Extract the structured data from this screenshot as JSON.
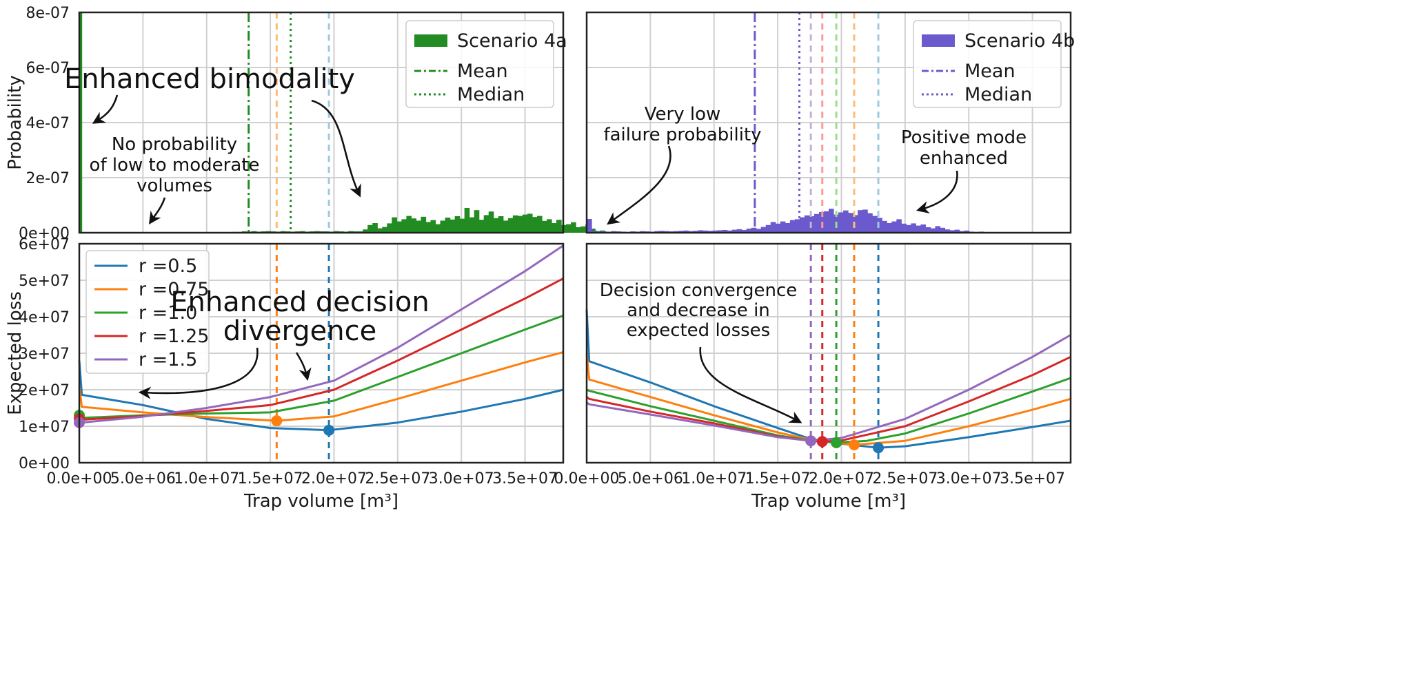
{
  "chart_data": [
    {
      "panel": "top-left",
      "type": "bar",
      "ylabel": "Probability",
      "xlim": [
        0,
        38000000
      ],
      "ylim": [
        0,
        8e-07
      ],
      "yticks": [
        "0e+00",
        "2e-07",
        "4e-07",
        "6e-07",
        "8e-07"
      ],
      "grid": true,
      "legend": {
        "position": "top-right",
        "entries": [
          "Scenario 4a",
          "Mean",
          "Median"
        ]
      },
      "color": "#228b22",
      "bin_start": 0,
      "bin_width": 380000,
      "hist_values": [
        8e-07,
        0,
        0,
        0,
        0,
        0,
        0,
        0,
        0,
        0,
        0,
        0,
        0,
        0,
        0,
        0,
        0,
        0,
        0,
        0,
        0,
        0,
        0,
        0,
        0,
        0,
        0,
        0,
        0,
        0,
        0,
        0,
        0,
        0,
        0,
        0,
        0,
        0,
        0,
        0,
        0,
        0,
        0,
        0,
        0,
        0,
        0,
        0,
        0,
        0,
        0,
        0,
        0,
        0,
        0,
        0,
        0,
        0,
        0,
        0,
        0,
        0,
        0,
        0,
        0,
        0,
        0,
        0,
        0,
        0,
        0,
        0,
        0,
        0,
        0,
        0,
        0,
        0,
        0,
        0,
        0,
        0,
        0,
        0,
        0,
        0,
        0,
        0,
        0,
        0,
        0,
        0,
        0,
        0,
        0,
        0,
        0,
        0,
        0,
        0
      ],
      "hist_segment_values": [
        3e-09,
        3e-09,
        5e-09,
        4e-09,
        6e-09,
        4e-09,
        5e-09,
        6e-09,
        5e-09,
        4e-09,
        6e-09,
        5e-09,
        4e-09,
        5e-09,
        6e-09,
        4e-09,
        5e-09,
        6e-09,
        5e-09,
        5e-09,
        4e-09,
        6e-09,
        5e-09,
        4e-09,
        6e-09,
        5e-09,
        5e-09,
        1.2e-08,
        2.8e-08,
        3.5e-08,
        1.6e-08,
        2.1e-08,
        3.4e-08,
        5.6e-08,
        4.1e-08,
        4.9e-08,
        6.1e-08,
        5.2e-08,
        4.4e-08,
        5.8e-08,
        3.9e-08,
        4.6e-08,
        3.1e-08,
        4.4e-08,
        5.5e-08,
        4.8e-08,
        6e-08,
        5.1e-08,
        9e-08,
        5.6e-08,
        8.2e-08,
        4.7e-08,
        6.4e-08,
        7.7e-08,
        5.3e-08,
        6e-08,
        4.4e-08,
        5.3e-08,
        6.3e-08,
        6.1e-08,
        6.6e-08,
        6.9e-08,
        5.7e-08,
        6.1e-08,
        4.3e-08,
        4.9e-08,
        3.5e-08,
        4.7e-08,
        2.8e-08,
        3.1e-08,
        3.8e-08,
        2e-08,
        2.3e-08,
        3e-08,
        1.5e-08,
        6e-09,
        8e-09,
        4e-09,
        3e-09
      ],
      "hist_segment_start": 12000000,
      "vlines": [
        {
          "x": 13300000,
          "style": "dashdot",
          "color": "#228b22"
        },
        {
          "x": 15500000,
          "style": "dashed",
          "color": "#ffbb78"
        },
        {
          "x": 16600000,
          "style": "dotted",
          "color": "#228b22"
        },
        {
          "x": 19600000,
          "style": "dashed",
          "color": "#9ecae1"
        }
      ]
    },
    {
      "panel": "top-right",
      "type": "bar",
      "xlim": [
        0,
        38000000
      ],
      "ylim": [
        0,
        8e-07
      ],
      "grid": true,
      "legend": {
        "position": "top-right",
        "entries": [
          "Scenario 4b",
          "Mean",
          "Median"
        ]
      },
      "color": "#6a5acd",
      "hist_segment_start": 0,
      "bin_width": 380000,
      "hist_segment_values": [
        5e-08,
        8e-09,
        4e-09,
        5e-09,
        3e-09,
        6e-09,
        5e-09,
        4e-09,
        3e-09,
        5e-09,
        4e-09,
        6e-09,
        5e-09,
        4e-09,
        6e-09,
        7e-09,
        6e-09,
        5e-09,
        6e-09,
        7e-09,
        8e-09,
        6e-09,
        7e-09,
        9e-09,
        8e-09,
        7e-09,
        8e-09,
        9e-09,
        1e-08,
        8e-09,
        1.1e-08,
        1.3e-08,
        1e-08,
        1.5e-08,
        1.8e-08,
        1.4e-08,
        2.1e-08,
        2.8e-08,
        3.9e-08,
        3.3e-08,
        4.1e-08,
        3.5e-08,
        4.6e-08,
        4.9e-08,
        5.6e-08,
        6.3e-08,
        6e-08,
        6.8e-08,
        7.5e-08,
        7.8e-08,
        8.7e-08,
        6.6e-08,
        7.4e-08,
        8.1e-08,
        7.2e-08,
        6.4e-08,
        8.2e-08,
        8.4e-08,
        7.1e-08,
        6.1e-08,
        5.4e-08,
        4.3e-08,
        3.5e-08,
        4.1e-08,
        4.9e-08,
        3.3e-08,
        2.8e-08,
        3.4e-08,
        2.6e-08,
        3e-08,
        2e-08,
        1.6e-08,
        2.4e-08,
        1.8e-08,
        1.2e-08,
        9e-09,
        1.1e-08,
        6e-09,
        8e-09,
        4e-09,
        3e-09,
        4e-09
      ],
      "vlines": [
        {
          "x": 13200000,
          "style": "dashdot",
          "color": "#6a5acd"
        },
        {
          "x": 16700000,
          "style": "dotted",
          "color": "#6a5acd"
        },
        {
          "x": 17600000,
          "style": "dashed",
          "color": "#c5b0d5"
        },
        {
          "x": 18500000,
          "style": "dashed",
          "color": "#ff9896"
        },
        {
          "x": 19600000,
          "style": "dashed",
          "color": "#98df8a"
        },
        {
          "x": 21000000,
          "style": "dashed",
          "color": "#ffbb78"
        },
        {
          "x": 22900000,
          "style": "dashed",
          "color": "#9ecae1"
        }
      ]
    },
    {
      "panel": "bottom-left",
      "type": "line",
      "xlabel": "Trap volume [m³]",
      "ylabel": "Expected loss",
      "xlim": [
        0,
        38000000
      ],
      "ylim": [
        0,
        60000000
      ],
      "xticks": [
        "0.0e+00",
        "5.0e+06",
        "1.0e+07",
        "1.5e+07",
        "2.0e+07",
        "2.5e+07",
        "3.0e+07",
        "3.5e+07"
      ],
      "yticks": [
        "0e+00",
        "1e+07",
        "2e+07",
        "3e+07",
        "4e+07",
        "5e+07",
        "6e+07"
      ],
      "grid": true,
      "legend": {
        "position": "top-left"
      },
      "series": [
        {
          "name": "r =0.5",
          "color": "#1f77b4",
          "points": [
            [
              0,
              28000000
            ],
            [
              200000,
              18600000
            ],
            [
              5000000,
              15800000
            ],
            [
              10000000,
              12000000
            ],
            [
              15000000,
              9500000
            ],
            [
              19600000,
              8900000
            ],
            [
              25000000,
              11000000
            ],
            [
              30000000,
              14000000
            ],
            [
              35000000,
              17500000
            ],
            [
              38000000,
              20000000
            ]
          ],
          "min": [
            19600000,
            8900000
          ]
        },
        {
          "name": "r =0.75",
          "color": "#ff7f0e",
          "points": [
            [
              0,
              21000000
            ],
            [
              200000,
              15300000
            ],
            [
              5000000,
              13800000
            ],
            [
              10000000,
              12500000
            ],
            [
              15500000,
              11500000
            ],
            [
              20000000,
              12700000
            ],
            [
              25000000,
              17500000
            ],
            [
              30000000,
              22500000
            ],
            [
              35000000,
              27500000
            ],
            [
              38000000,
              30300000
            ]
          ],
          "min": [
            15500000,
            11500000
          ]
        },
        {
          "name": "r =1.0",
          "color": "#2ca02c",
          "points": [
            [
              0,
              13000000
            ],
            [
              200000,
              12300000
            ],
            [
              5000000,
              13000000
            ],
            [
              10000000,
              13500000
            ],
            [
              15000000,
              13800000
            ],
            [
              20000000,
              17000000
            ],
            [
              25000000,
              23500000
            ],
            [
              30000000,
              30000000
            ],
            [
              35000000,
              36500000
            ],
            [
              38000000,
              40300000
            ]
          ],
          "min": [
            0,
            13000000
          ]
        },
        {
          "name": "r =1.25",
          "color": "#d62728",
          "points": [
            [
              0,
              12000000
            ],
            [
              200000,
              11800000
            ],
            [
              5000000,
              12800000
            ],
            [
              10000000,
              14200000
            ],
            [
              15000000,
              15800000
            ],
            [
              20000000,
              20000000
            ],
            [
              25000000,
              28000000
            ],
            [
              30000000,
              36500000
            ],
            [
              35000000,
              45000000
            ],
            [
              38000000,
              50500000
            ]
          ],
          "min": [
            0,
            12000000
          ]
        },
        {
          "name": "r =1.5",
          "color": "#9467bd",
          "points": [
            [
              0,
              11000000
            ],
            [
              200000,
              11000000
            ],
            [
              5000000,
              12600000
            ],
            [
              10000000,
              15000000
            ],
            [
              15000000,
              18000000
            ],
            [
              20000000,
              22500000
            ],
            [
              25000000,
              31500000
            ],
            [
              30000000,
              42000000
            ],
            [
              35000000,
              52500000
            ],
            [
              38000000,
              59500000
            ]
          ],
          "min": [
            0,
            11000000
          ]
        }
      ],
      "vlines": [
        {
          "x": 15500000,
          "style": "dashed",
          "color": "#ff7f0e"
        },
        {
          "x": 19600000,
          "style": "dashed",
          "color": "#1f77b4"
        }
      ]
    },
    {
      "panel": "bottom-right",
      "type": "line",
      "xlabel": "Trap volume [m³]",
      "xlim": [
        0,
        38000000
      ],
      "ylim": [
        0,
        60000000
      ],
      "xticks": [
        "0.0e+00",
        "5.0e+06",
        "1.0e+07",
        "1.5e+07",
        "2.0e+07",
        "2.5e+07",
        "3.0e+07",
        "3.5e+07"
      ],
      "grid": true,
      "series": [
        {
          "name": "r =0.5",
          "color": "#1f77b4",
          "points": [
            [
              0,
              42000000
            ],
            [
              200000,
              27800000
            ],
            [
              5000000,
              22000000
            ],
            [
              10000000,
              15500000
            ],
            [
              15000000,
              9500000
            ],
            [
              17600000,
              6500000
            ],
            [
              20000000,
              5200000
            ],
            [
              22900000,
              4100000
            ],
            [
              25000000,
              4500000
            ],
            [
              30000000,
              7000000
            ],
            [
              35000000,
              9800000
            ],
            [
              38000000,
              11500000
            ]
          ],
          "min": [
            22900000,
            4100000
          ]
        },
        {
          "name": "r =0.75",
          "color": "#ff7f0e",
          "points": [
            [
              0,
              30000000
            ],
            [
              200000,
              22800000
            ],
            [
              5000000,
              18000000
            ],
            [
              10000000,
              13000000
            ],
            [
              15000000,
              8300000
            ],
            [
              17600000,
              6300000
            ],
            [
              21000000,
              4900000
            ],
            [
              25000000,
              6000000
            ],
            [
              30000000,
              10000000
            ],
            [
              35000000,
              14500000
            ],
            [
              38000000,
              17500000
            ]
          ],
          "min": [
            21000000,
            4900000
          ]
        },
        {
          "name": "r =1.0",
          "color": "#2ca02c",
          "points": [
            [
              0,
              20000000
            ],
            [
              200000,
              19700000
            ],
            [
              5000000,
              15500000
            ],
            [
              10000000,
              11500000
            ],
            [
              15000000,
              7500000
            ],
            [
              17600000,
              6100000
            ],
            [
              19600000,
              5500000
            ],
            [
              22000000,
              6000000
            ],
            [
              25000000,
              8000000
            ],
            [
              30000000,
              13500000
            ],
            [
              35000000,
              19500000
            ],
            [
              38000000,
              23200000
            ]
          ],
          "min": [
            19600000,
            5500000
          ]
        },
        {
          "name": "r =1.25",
          "color": "#d62728",
          "points": [
            [
              0,
              18000000
            ],
            [
              200000,
              17500000
            ],
            [
              5000000,
              14000000
            ],
            [
              10000000,
              10800000
            ],
            [
              15000000,
              7200000
            ],
            [
              17600000,
              6000000
            ],
            [
              18500000,
              5800000
            ],
            [
              20000000,
              6100000
            ],
            [
              25000000,
              10000000
            ],
            [
              30000000,
              16800000
            ],
            [
              35000000,
              24000000
            ],
            [
              38000000,
              29000000
            ]
          ],
          "min": [
            18500000,
            5800000
          ]
        },
        {
          "name": "r =1.5",
          "color": "#9467bd",
          "points": [
            [
              0,
              16500000
            ],
            [
              200000,
              16000000
            ],
            [
              5000000,
              13200000
            ],
            [
              10000000,
              10200000
            ],
            [
              15000000,
              7000000
            ],
            [
              17600000,
              6000000
            ],
            [
              20000000,
              6800000
            ],
            [
              25000000,
              12000000
            ],
            [
              30000000,
              20000000
            ],
            [
              35000000,
              29000000
            ],
            [
              38000000,
              35000000
            ]
          ],
          "min": [
            17600000,
            6000000
          ]
        }
      ],
      "vlines": [
        {
          "x": 17600000,
          "style": "dashed",
          "color": "#9467bd"
        },
        {
          "x": 18500000,
          "style": "dashed",
          "color": "#d62728"
        },
        {
          "x": 19600000,
          "style": "dashed",
          "color": "#2ca02c"
        },
        {
          "x": 21000000,
          "style": "dashed",
          "color": "#ff7f0e"
        },
        {
          "x": 22900000,
          "style": "dashed",
          "color": "#1f77b4"
        }
      ]
    }
  ],
  "annotations": {
    "enhanced_bimodality": "Enhanced bimodality",
    "no_probability": [
      "No probability",
      "of low to moderate",
      "volumes"
    ],
    "very_low": [
      "Very low",
      "failure probability"
    ],
    "positive_mode": [
      "Positive mode",
      "enhanced"
    ],
    "enhanced_decision": [
      "Enhanced decision",
      "divergence"
    ],
    "decision_convergence": [
      "Decision convergence",
      "and decrease in",
      "expected losses"
    ]
  }
}
